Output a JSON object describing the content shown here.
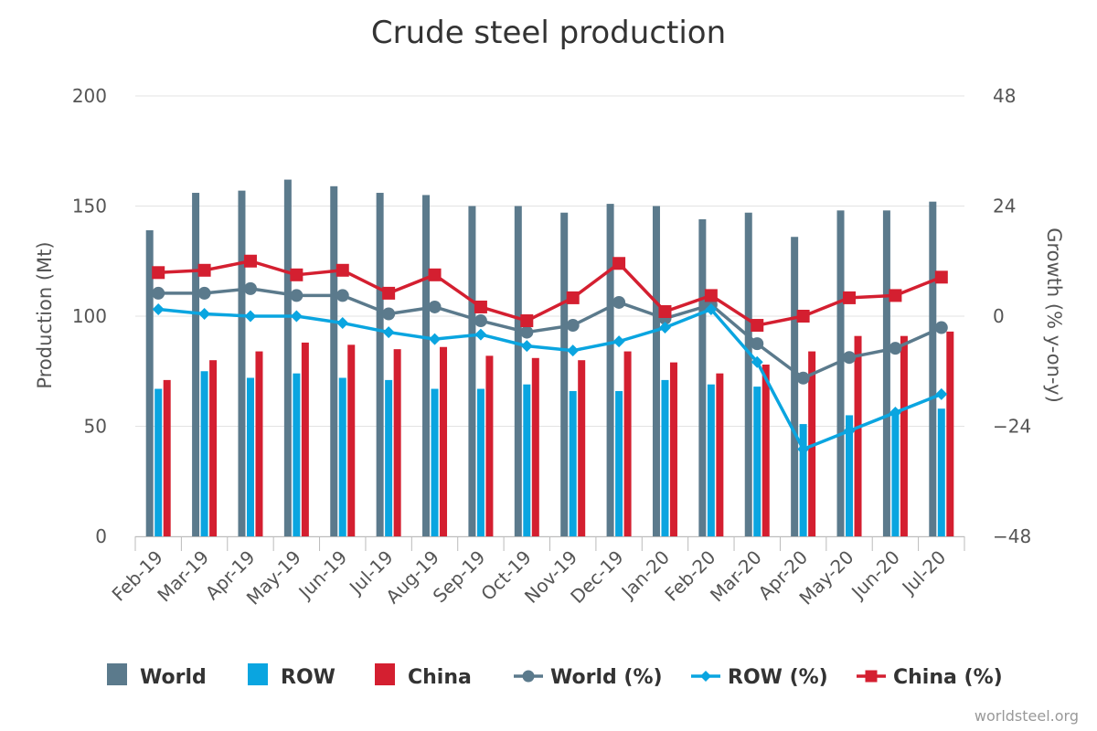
{
  "chart_data": {
    "type": "bar",
    "title": "Crude steel production",
    "credit": "worldsteel.org",
    "categories": [
      "Feb-19",
      "Mar-19",
      "Apr-19",
      "May-19",
      "Jun-19",
      "Jul-19",
      "Aug-19",
      "Sep-19",
      "Oct-19",
      "Nov-19",
      "Dec-19",
      "Jan-20",
      "Feb-20",
      "Mar-20",
      "Apr-20",
      "May-20",
      "Jun-20",
      "Jul-20"
    ],
    "y_left": {
      "label": "Production (Mt)",
      "min": 0,
      "max": 200,
      "ticks": [
        0,
        50,
        100,
        150,
        200
      ]
    },
    "y_right": {
      "label": "Growth (% y-on-y)",
      "min": -48,
      "max": 48,
      "ticks": [
        -48,
        -24,
        0,
        24,
        48
      ]
    },
    "grid": true,
    "legend_position": "bottom",
    "bar_series": [
      {
        "name": "World",
        "color": "#5b7a8c",
        "axis": "left",
        "values": [
          139,
          156,
          157,
          162,
          159,
          156,
          155,
          150,
          150,
          147,
          151,
          150,
          144,
          147,
          136,
          148,
          148,
          152
        ]
      },
      {
        "name": "ROW",
        "color": "#0aa5e0",
        "axis": "left",
        "values": [
          67,
          75,
          72,
          74,
          72,
          71,
          67,
          67,
          69,
          66,
          66,
          71,
          69,
          68,
          51,
          55,
          57,
          58
        ]
      },
      {
        "name": "China",
        "color": "#d41f30",
        "axis": "left",
        "values": [
          71,
          80,
          84,
          88,
          87,
          85,
          86,
          82,
          81,
          80,
          84,
          79,
          74,
          78,
          84,
          91,
          91,
          93
        ]
      }
    ],
    "line_series": [
      {
        "name": "World (%)",
        "color": "#5b7a8c",
        "marker": "circle",
        "axis": "right",
        "values": [
          5,
          5,
          6,
          4.5,
          4.5,
          0.5,
          2,
          -1,
          -3.5,
          -2,
          3,
          -0.5,
          2.5,
          -6,
          -13.5,
          -9,
          -7,
          -2.5
        ]
      },
      {
        "name": "ROW (%)",
        "color": "#0aa5e0",
        "marker": "diamond",
        "axis": "right",
        "values": [
          1.5,
          0.5,
          0,
          0,
          -1.5,
          -3.5,
          -5,
          -4,
          -6.5,
          -7.5,
          -5.5,
          -2.5,
          1.5,
          -10,
          -29,
          -25,
          -21,
          -17
        ]
      },
      {
        "name": "China (%)",
        "color": "#d41f30",
        "marker": "square",
        "axis": "right",
        "values": [
          9.5,
          10,
          12,
          9,
          10,
          5,
          9,
          2,
          -1,
          4,
          11.5,
          1,
          4.5,
          -2,
          0,
          4,
          4.5,
          8.5
        ]
      }
    ]
  }
}
